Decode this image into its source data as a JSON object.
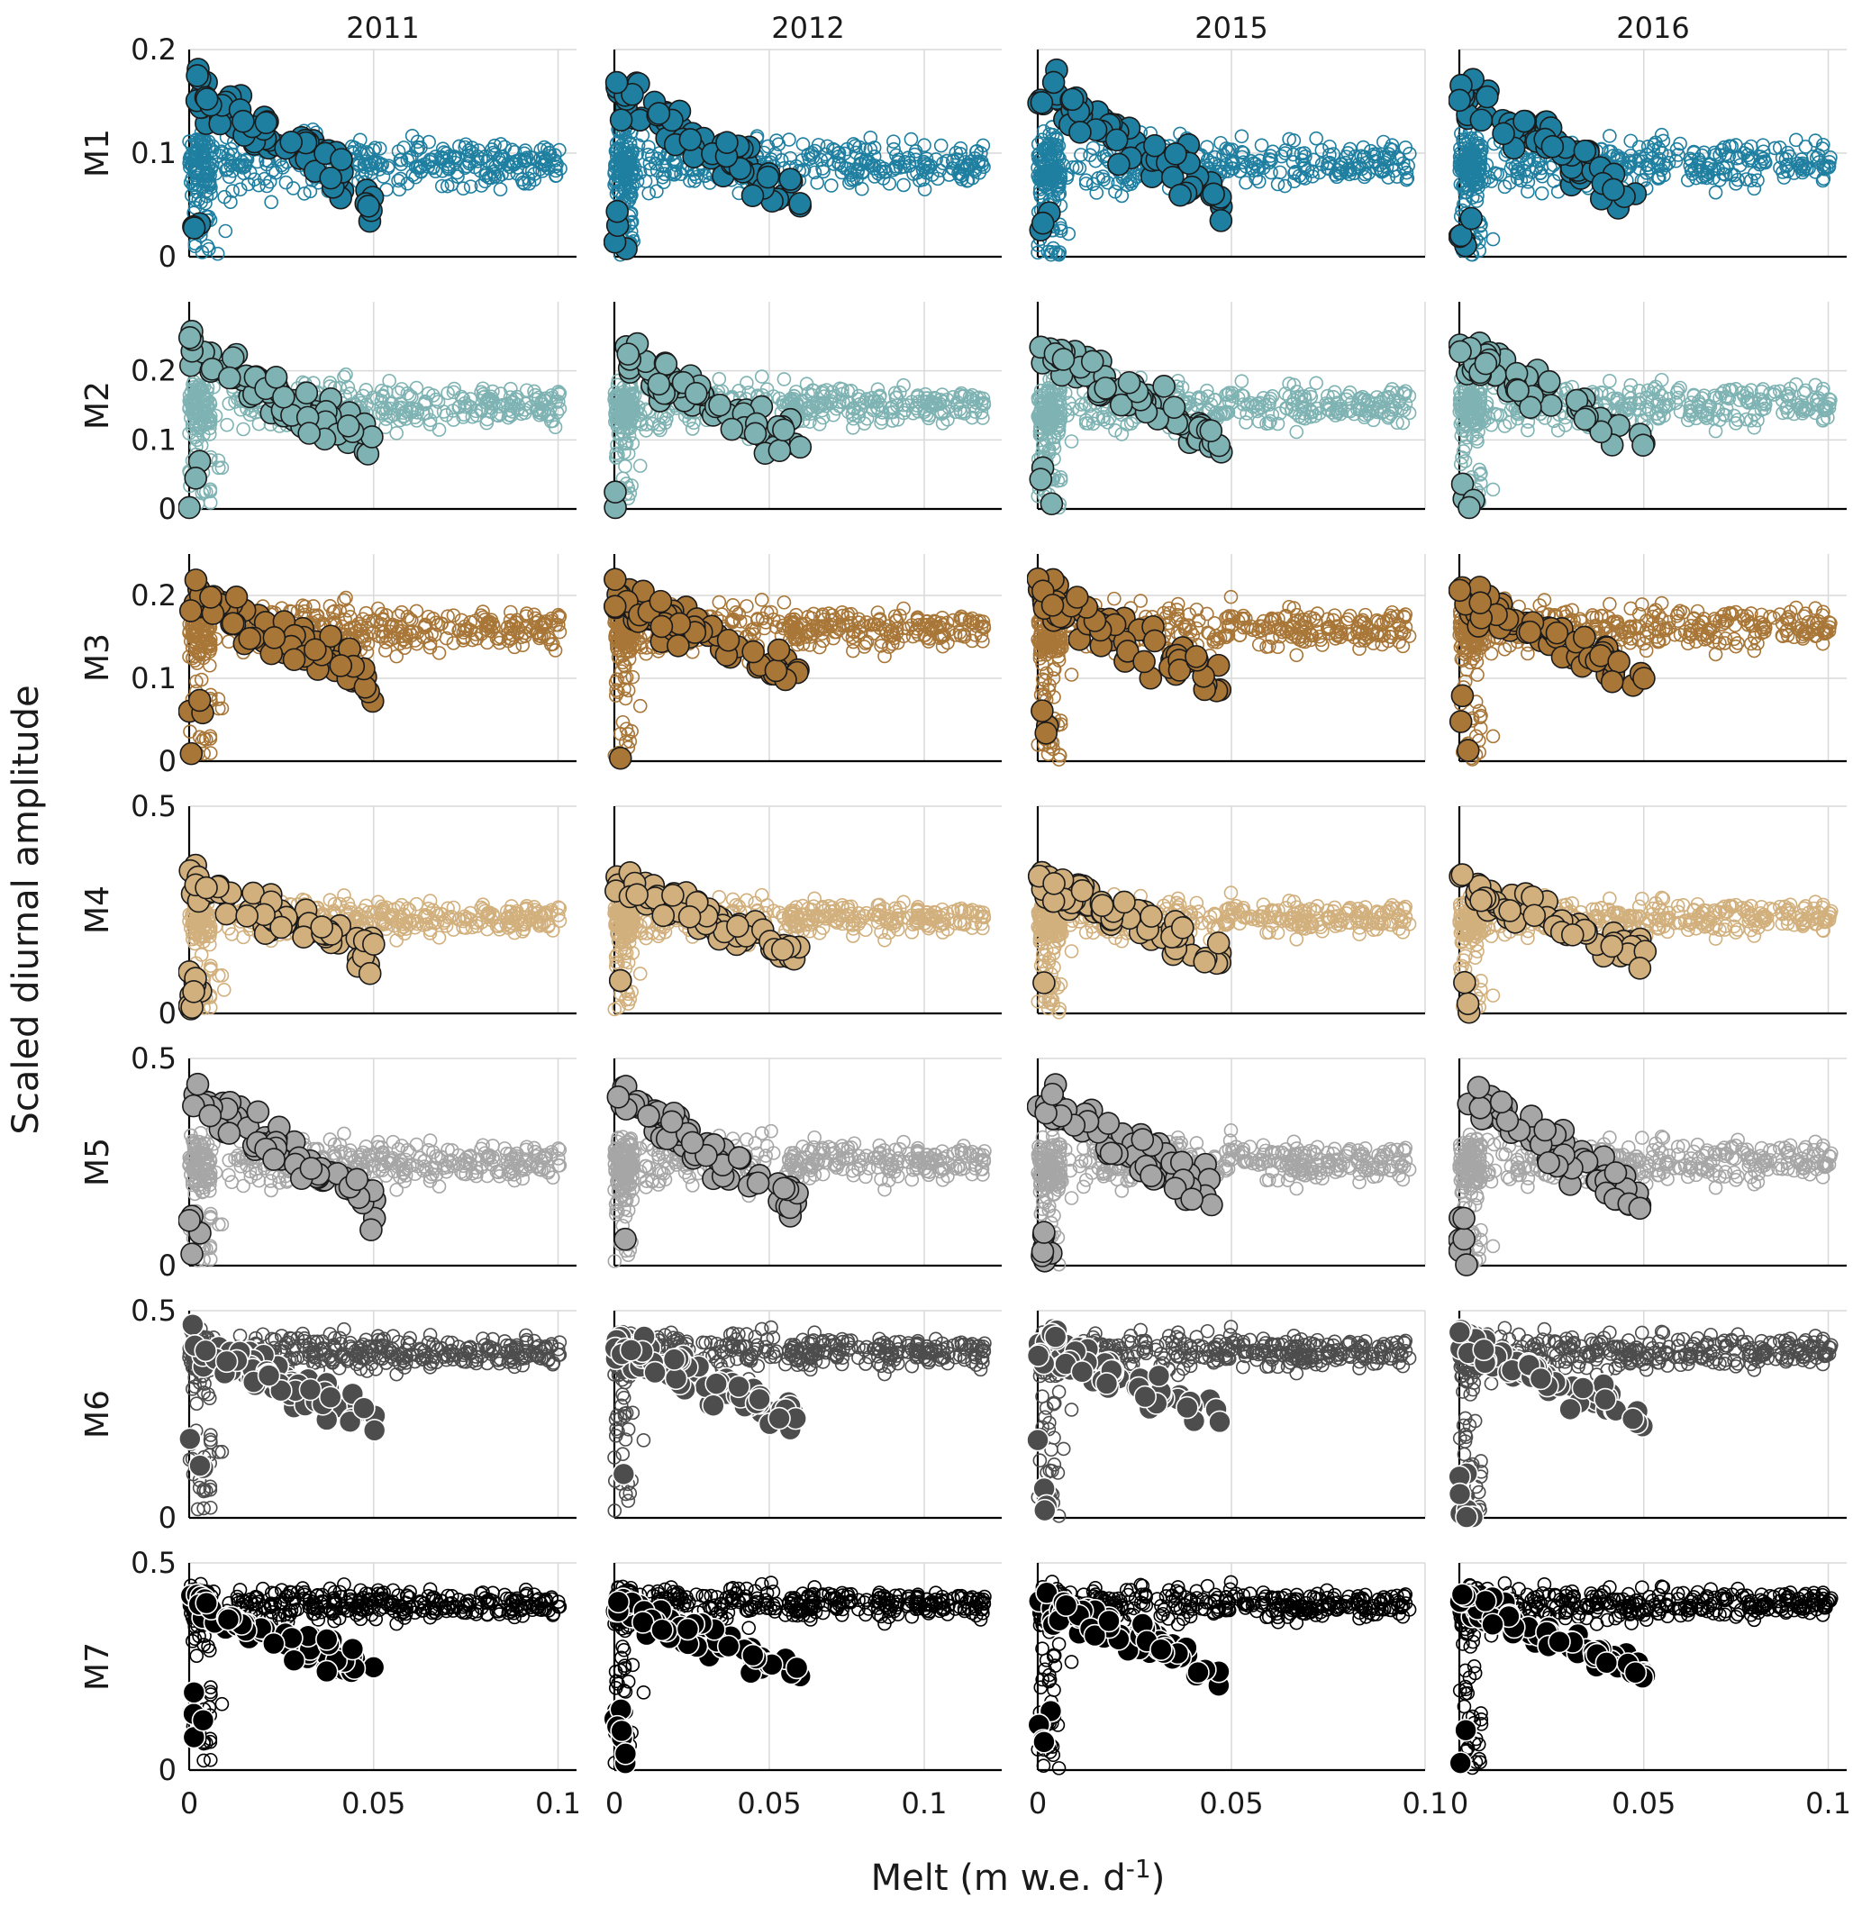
{
  "chart_data": {
    "type": "scatter",
    "ylabel": "Scaled diurnal amplitude",
    "xlabel_main": "Melt (m w.e. d",
    "xlabel_sup": "-1",
    "xlabel_end": ")",
    "columns": [
      "2011",
      "2012",
      "2015",
      "2016"
    ],
    "xlims": [
      [
        0,
        0.105
      ],
      [
        0,
        0.125
      ],
      [
        0,
        0.1
      ],
      [
        0,
        0.105
      ]
    ],
    "x_ticks": [
      0,
      0.05,
      0.1
    ],
    "x_tick_labels": [
      "0",
      "0.05",
      "0.1"
    ],
    "grid": true,
    "rows": [
      {
        "name": "M1",
        "color": "#1f7fa0",
        "highlight_edge": "#1a1a1a",
        "ylim": [
          0,
          0.2
        ],
        "y_ticks": [
          0,
          0.1,
          0.2
        ],
        "y_tick_labels": [
          "0",
          "0.1",
          "0.2"
        ],
        "center": 0.09,
        "spread": 0.045,
        "peak": 0.16
      },
      {
        "name": "M2",
        "color": "#7fb3b3",
        "highlight_edge": "#1a1a1a",
        "ylim": [
          0,
          0.3
        ],
        "y_ticks": [
          0,
          0.1,
          0.2
        ],
        "y_tick_labels": [
          "0",
          "0.1",
          "0.2"
        ],
        "center": 0.15,
        "spread": 0.06,
        "peak": 0.23
      },
      {
        "name": "M3",
        "color": "#a87637",
        "highlight_edge": "#1a1a1a",
        "ylim": [
          0,
          0.25
        ],
        "y_ticks": [
          0,
          0.1,
          0.2
        ],
        "y_tick_labels": [
          "0",
          "0.1",
          "0.2"
        ],
        "center": 0.16,
        "spread": 0.05,
        "peak": 0.2
      },
      {
        "name": "M4",
        "color": "#d2b07d",
        "highlight_edge": "#1a1a1a",
        "ylim": [
          0,
          0.5
        ],
        "y_ticks": [
          0,
          0.5
        ],
        "y_tick_labels": [
          "0",
          "0.5"
        ],
        "center": 0.23,
        "spread": 0.08,
        "peak": 0.32
      },
      {
        "name": "M5",
        "color": "#a6a6a6",
        "highlight_edge": "#1a1a1a",
        "ylim": [
          0,
          0.5
        ],
        "y_ticks": [
          0,
          0.5
        ],
        "y_tick_labels": [
          "0",
          "0.5"
        ],
        "center": 0.25,
        "spread": 0.1,
        "peak": 0.42
      },
      {
        "name": "M6",
        "color": "#4d4d4d",
        "highlight_edge": "#ffffff",
        "ylim": [
          0,
          0.5
        ],
        "y_ticks": [
          0,
          0.5
        ],
        "y_tick_labels": [
          "0",
          "0.5"
        ],
        "center": 0.4,
        "spread": 0.08,
        "peak": 0.42
      },
      {
        "name": "M7",
        "color": "#000000",
        "highlight_edge": "#ffffff",
        "ylim": [
          0,
          0.5
        ],
        "y_ticks": [
          0,
          0.5
        ],
        "y_tick_labels": [
          "0",
          "0.5"
        ],
        "center": 0.4,
        "spread": 0.07,
        "peak": 0.4
      }
    ]
  }
}
